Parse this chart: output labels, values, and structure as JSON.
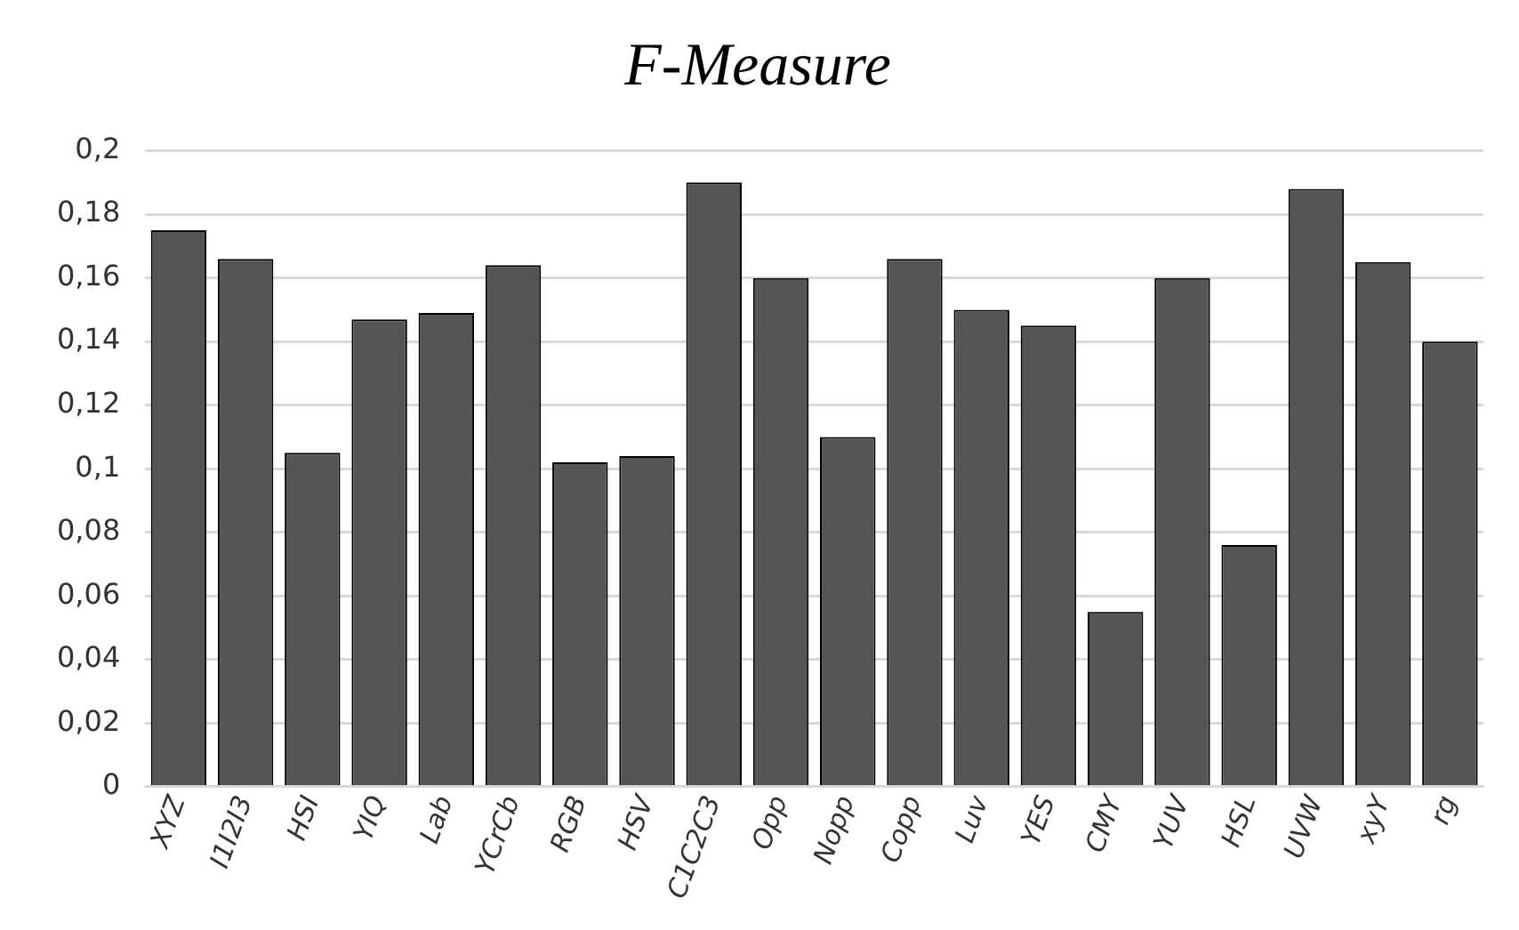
{
  "chart_data": {
    "type": "bar",
    "title": "F-Measure",
    "categories": [
      "XYZ",
      "I1I2I3",
      "HSI",
      "YIQ",
      "Lab",
      "YCrCb",
      "RGB",
      "HSV",
      "C1C2C3",
      "Opp",
      "Nopp",
      "Copp",
      "Luv",
      "YES",
      "CMY",
      "YUV",
      "HSL",
      "UVW",
      "xyY",
      "rg"
    ],
    "values": [
      0.175,
      0.166,
      0.105,
      0.147,
      0.149,
      0.164,
      0.102,
      0.104,
      0.19,
      0.16,
      0.11,
      0.166,
      0.15,
      0.145,
      0.055,
      0.16,
      0.076,
      0.188,
      0.165,
      0.14
    ],
    "color": "#555555",
    "ylim": [
      0,
      0.2
    ],
    "yticks": [
      {
        "value": 0,
        "label": "0"
      },
      {
        "value": 0.02,
        "label": "0,02"
      },
      {
        "value": 0.04,
        "label": "0,04"
      },
      {
        "value": 0.06,
        "label": "0,06"
      },
      {
        "value": 0.08,
        "label": "0,08"
      },
      {
        "value": 0.1,
        "label": "0,1"
      },
      {
        "value": 0.12,
        "label": "0,12"
      },
      {
        "value": 0.14,
        "label": "0,14"
      },
      {
        "value": 0.16,
        "label": "0,16"
      },
      {
        "value": 0.18,
        "label": "0,18"
      },
      {
        "value": 0.2,
        "label": "0,2"
      }
    ],
    "grid": "y",
    "legend": false
  }
}
